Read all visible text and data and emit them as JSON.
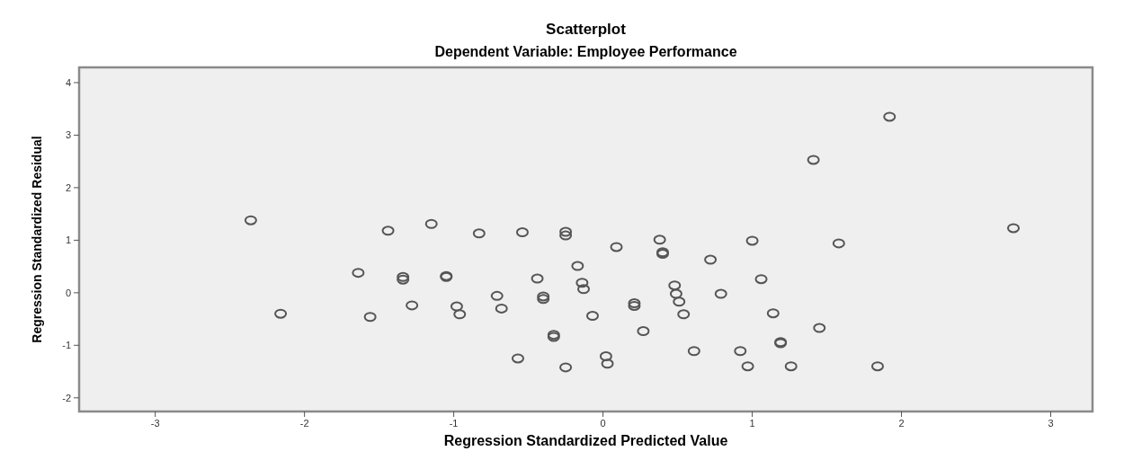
{
  "chart_data": {
    "type": "scatter",
    "title": "Scatterplot",
    "subtitle": "Dependent Variable: Employee Performance",
    "xlabel": "Regression Standardized Predicted Value",
    "ylabel": "Regression Standardized Residual",
    "x": [
      -2.36,
      -2.16,
      -1.64,
      -1.56,
      -1.44,
      -1.34,
      -1.34,
      -1.28,
      -1.15,
      -1.05,
      -1.05,
      -0.98,
      -0.96,
      -0.83,
      -0.71,
      -0.68,
      -0.54,
      -0.57,
      -0.44,
      -0.4,
      -0.4,
      -0.33,
      -0.33,
      -0.25,
      -0.25,
      -0.25,
      -0.17,
      -0.14,
      -0.13,
      -0.07,
      0.02,
      0.03,
      0.09,
      0.21,
      0.21,
      0.27,
      0.38,
      0.4,
      0.4,
      0.48,
      0.49,
      0.51,
      0.54,
      0.61,
      0.72,
      0.79,
      0.92,
      0.97,
      1.0,
      1.06,
      1.14,
      1.19,
      1.19,
      1.26,
      1.45,
      1.41,
      1.58,
      1.84,
      1.92,
      2.75
    ],
    "values": [
      1.38,
      -0.4,
      0.38,
      -0.46,
      1.18,
      0.3,
      0.25,
      -0.24,
      1.31,
      0.32,
      0.3,
      -0.26,
      -0.41,
      1.13,
      -0.06,
      -0.3,
      1.15,
      -1.25,
      0.27,
      -0.07,
      -0.12,
      -0.8,
      -0.84,
      1.16,
      1.09,
      -1.42,
      0.51,
      0.19,
      0.07,
      -0.44,
      -1.21,
      -1.35,
      0.87,
      -0.2,
      -0.25,
      -0.73,
      1.01,
      0.77,
      0.74,
      0.14,
      -0.02,
      -0.17,
      -0.41,
      -1.11,
      0.63,
      -0.02,
      -1.11,
      -1.4,
      0.99,
      0.26,
      -0.39,
      -0.94,
      -0.96,
      -1.4,
      -0.67,
      2.53,
      0.94,
      -1.4,
      3.35,
      1.23
    ],
    "color": "#555555",
    "marker": "circle",
    "grid": false,
    "xlim": [
      -3.51,
      3.28
    ],
    "xticks": [
      -3,
      -2,
      -1,
      0,
      1,
      2,
      3
    ],
    "ylim": [
      -2.26,
      4.29
    ],
    "yticks": [
      -2,
      -1,
      0,
      1,
      2,
      3,
      4
    ]
  }
}
